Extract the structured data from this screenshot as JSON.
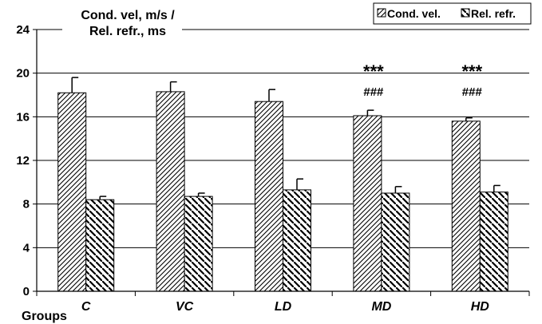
{
  "chart_data": {
    "type": "bar",
    "ylabel_line1": "Cond. vel, m/s /",
    "ylabel_line2": "Rel. refr., ms",
    "xlabel": "Groups",
    "categories": [
      "C",
      "VC",
      "LD",
      "MD",
      "HD"
    ],
    "ylim": [
      0,
      24
    ],
    "yticks": [
      0,
      4,
      8,
      12,
      16,
      20,
      24
    ],
    "grid": true,
    "legend_position": "top-right",
    "series": [
      {
        "name": "Cond. vel.",
        "values": [
          18.2,
          18.3,
          17.4,
          16.1,
          15.6
        ],
        "errors": [
          1.4,
          0.9,
          1.1,
          0.5,
          0.3
        ],
        "pattern": "hatch-forward"
      },
      {
        "name": "Rel. refr.",
        "values": [
          8.4,
          8.7,
          9.3,
          9.0,
          9.1
        ],
        "errors": [
          0.3,
          0.3,
          1.0,
          0.6,
          0.6
        ],
        "pattern": "hatch-backward"
      }
    ],
    "annotations": [
      {
        "category": "MD",
        "star": "***",
        "hash": "###"
      },
      {
        "category": "HD",
        "star": "***",
        "hash": "###"
      }
    ],
    "colors": {
      "bar_fill": "#ffffff",
      "stroke": "#000000",
      "grid": "#000000"
    }
  }
}
